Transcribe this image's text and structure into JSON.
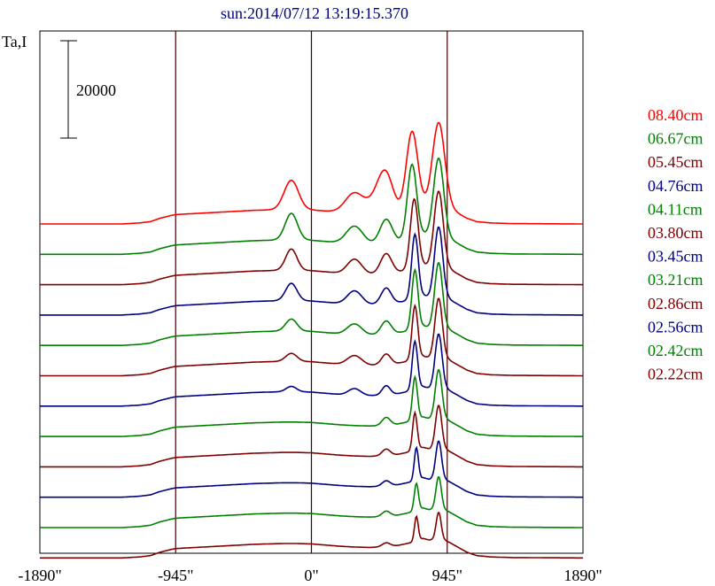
{
  "chart_data": {
    "type": "line",
    "title": "sun:2014/07/12 13:19:15.370",
    "ylabel": "Ta,I",
    "scale_bar_label": "20000",
    "scale_bar_value": 20000,
    "xlim": [
      -1890,
      1890
    ],
    "x_ticks": [
      {
        "value": -1890,
        "label": "-1890\""
      },
      {
        "value": -945,
        "label": "-945\""
      },
      {
        "value": 0,
        "label": "0\""
      },
      {
        "value": 945,
        "label": "945\""
      },
      {
        "value": 1890,
        "label": "1890\""
      }
    ],
    "vertical_lines": [
      -945,
      0,
      945
    ],
    "grid": false,
    "legend_position": "right",
    "profile": {
      "x": [
        -1890,
        -1320,
        -1200,
        -1120,
        -1060,
        -985,
        -945,
        -900,
        -800,
        -700,
        -600,
        -500,
        -400,
        -300,
        -200,
        -100,
        0,
        100,
        200,
        300,
        400,
        500,
        560,
        600,
        640,
        700,
        740,
        780,
        820,
        860,
        900,
        960,
        1020,
        1080,
        1150,
        1250,
        1400,
        1890
      ],
      "offset": [
        0.0,
        0.0,
        0.05,
        0.12,
        0.28,
        0.42,
        0.48,
        0.5,
        0.54,
        0.58,
        0.62,
        0.66,
        0.7,
        0.72,
        0.74,
        0.74,
        0.72,
        0.66,
        0.6,
        0.56,
        0.54,
        0.56,
        0.6,
        0.64,
        0.7,
        0.8,
        0.95,
        1.0,
        0.92,
        0.95,
        1.0,
        0.8,
        0.55,
        0.3,
        0.12,
        0.05,
        0.02,
        0.0
      ]
    },
    "series": [
      {
        "name": "08.40cm",
        "color": "#ff0000",
        "peaks": [
          {
            "x": -140,
            "h": 2.2,
            "w": 70
          },
          {
            "x": 300,
            "h": 1.5,
            "w": 90
          },
          {
            "x": 470,
            "h": 1.3,
            "w": 90
          },
          {
            "x": 520,
            "h": 2.2,
            "w": 70
          },
          {
            "x": 700,
            "h": 5.8,
            "w": 55
          },
          {
            "x": 885,
            "h": 6.2,
            "w": 60
          }
        ]
      },
      {
        "name": "06.67cm",
        "color": "#008000",
        "peaks": [
          {
            "x": -140,
            "h": 2.0,
            "w": 60
          },
          {
            "x": 300,
            "h": 1.3,
            "w": 80
          },
          {
            "x": 520,
            "h": 1.8,
            "w": 60
          },
          {
            "x": 700,
            "h": 5.6,
            "w": 45
          },
          {
            "x": 885,
            "h": 5.8,
            "w": 50
          }
        ]
      },
      {
        "name": "05.45cm",
        "color": "#800000",
        "peaks": [
          {
            "x": -140,
            "h": 1.6,
            "w": 55
          },
          {
            "x": 300,
            "h": 1.1,
            "w": 70
          },
          {
            "x": 520,
            "h": 1.5,
            "w": 55
          },
          {
            "x": 715,
            "h": 5.2,
            "w": 38
          },
          {
            "x": 885,
            "h": 5.6,
            "w": 45
          }
        ]
      },
      {
        "name": "04.76cm",
        "color": "#000080",
        "peaks": [
          {
            "x": -140,
            "h": 1.3,
            "w": 55
          },
          {
            "x": 300,
            "h": 1.0,
            "w": 70
          },
          {
            "x": 520,
            "h": 1.2,
            "w": 50
          },
          {
            "x": 720,
            "h": 4.8,
            "w": 32
          },
          {
            "x": 885,
            "h": 5.2,
            "w": 40
          }
        ]
      },
      {
        "name": "04.11cm",
        "color": "#008000",
        "peaks": [
          {
            "x": -140,
            "h": 0.9,
            "w": 55
          },
          {
            "x": 300,
            "h": 0.8,
            "w": 70
          },
          {
            "x": 520,
            "h": 1.0,
            "w": 50
          },
          {
            "x": 720,
            "h": 4.4,
            "w": 30
          },
          {
            "x": 885,
            "h": 4.8,
            "w": 38
          }
        ]
      },
      {
        "name": "03.80cm",
        "color": "#800000",
        "peaks": [
          {
            "x": -140,
            "h": 0.6,
            "w": 55
          },
          {
            "x": 300,
            "h": 0.7,
            "w": 70
          },
          {
            "x": 520,
            "h": 0.8,
            "w": 45
          },
          {
            "x": 720,
            "h": 4.0,
            "w": 28
          },
          {
            "x": 885,
            "h": 4.4,
            "w": 36
          }
        ]
      },
      {
        "name": "03.45cm",
        "color": "#000080",
        "peaks": [
          {
            "x": -140,
            "h": 0.4,
            "w": 50
          },
          {
            "x": 300,
            "h": 0.5,
            "w": 60
          },
          {
            "x": 520,
            "h": 0.7,
            "w": 40
          },
          {
            "x": 720,
            "h": 3.6,
            "w": 26
          },
          {
            "x": 885,
            "h": 4.0,
            "w": 34
          }
        ]
      },
      {
        "name": "03.21cm",
        "color": "#008000",
        "peaks": [
          {
            "x": 520,
            "h": 0.6,
            "w": 40
          },
          {
            "x": 720,
            "h": 3.2,
            "w": 24
          },
          {
            "x": 885,
            "h": 3.6,
            "w": 32
          }
        ]
      },
      {
        "name": "02.86cm",
        "color": "#800000",
        "peaks": [
          {
            "x": 520,
            "h": 0.5,
            "w": 40
          },
          {
            "x": 720,
            "h": 2.8,
            "w": 22
          },
          {
            "x": 885,
            "h": 3.2,
            "w": 30
          }
        ]
      },
      {
        "name": "02.56cm",
        "color": "#000080",
        "peaks": [
          {
            "x": 520,
            "h": 0.4,
            "w": 40
          },
          {
            "x": 730,
            "h": 2.4,
            "w": 20
          },
          {
            "x": 885,
            "h": 2.8,
            "w": 28
          }
        ]
      },
      {
        "name": "02.42cm",
        "color": "#008000",
        "peaks": [
          {
            "x": 520,
            "h": 0.4,
            "w": 40
          },
          {
            "x": 730,
            "h": 2.0,
            "w": 20
          },
          {
            "x": 885,
            "h": 2.4,
            "w": 26
          }
        ]
      },
      {
        "name": "02.22cm",
        "color": "#800000",
        "peaks": [
          {
            "x": 520,
            "h": 0.3,
            "w": 40
          },
          {
            "x": 730,
            "h": 1.8,
            "w": 18
          },
          {
            "x": 885,
            "h": 2.0,
            "w": 24
          }
        ]
      }
    ]
  }
}
